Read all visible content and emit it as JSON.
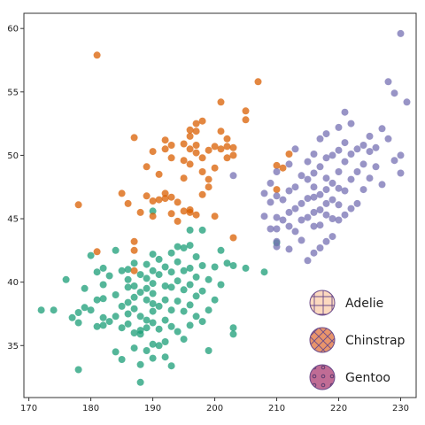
{
  "chart_data": {
    "type": "scatter",
    "title": "",
    "xlabel": "",
    "ylabel": "",
    "xlim": [
      169.2,
      232.5
    ],
    "ylim": [
      30.9,
      61.2
    ],
    "x_ticks": [
      170,
      180,
      190,
      200,
      210,
      220,
      230
    ],
    "y_ticks": [
      35,
      40,
      45,
      50,
      55,
      60
    ],
    "grid": false,
    "legend_position": "lower-right",
    "series": [
      {
        "name": "Adelie",
        "color": "#1b9e77",
        "legend_marker": "crosshatch",
        "legend_color": "#fcd9bf",
        "points": [
          [
            172,
            37.8
          ],
          [
            174,
            37.8
          ],
          [
            176,
            40.2
          ],
          [
            177,
            37.2
          ],
          [
            178,
            37.6
          ],
          [
            178,
            33.1
          ],
          [
            179,
            38.0
          ],
          [
            179,
            39.5
          ],
          [
            180,
            37.8
          ],
          [
            180,
            42.1
          ],
          [
            181,
            36.5
          ],
          [
            181,
            38.6
          ],
          [
            181,
            40.8
          ],
          [
            182,
            36.6
          ],
          [
            182,
            38.7
          ],
          [
            182,
            39.8
          ],
          [
            182,
            41.1
          ],
          [
            183,
            36.9
          ],
          [
            183,
            40.5
          ],
          [
            184,
            37.3
          ],
          [
            184,
            34.5
          ],
          [
            184,
            39.0
          ],
          [
            185,
            36.4
          ],
          [
            185,
            38.1
          ],
          [
            185,
            40.9
          ],
          [
            185,
            33.9
          ],
          [
            186,
            36.7
          ],
          [
            186,
            37.5
          ],
          [
            186,
            39.6
          ],
          [
            186,
            40.2
          ],
          [
            186,
            41.0
          ],
          [
            187,
            34.8
          ],
          [
            187,
            36.0
          ],
          [
            187,
            37.9
          ],
          [
            187,
            38.8
          ],
          [
            187,
            39.7
          ],
          [
            187,
            41.5
          ],
          [
            188,
            33.5
          ],
          [
            188,
            35.9
          ],
          [
            188,
            36.2
          ],
          [
            188,
            37.3
          ],
          [
            188,
            39.2
          ],
          [
            188,
            40.6
          ],
          [
            188,
            32.1
          ],
          [
            189,
            34.6
          ],
          [
            189,
            36.4
          ],
          [
            189,
            37.0
          ],
          [
            189,
            38.6
          ],
          [
            189,
            39.5
          ],
          [
            189,
            40.3
          ],
          [
            189,
            41.4
          ],
          [
            190,
            35.1
          ],
          [
            190,
            36.8
          ],
          [
            190,
            37.7
          ],
          [
            190,
            38.3
          ],
          [
            190,
            39.1
          ],
          [
            190,
            39.9
          ],
          [
            190,
            40.9
          ],
          [
            190,
            42.2
          ],
          [
            191,
            35.0
          ],
          [
            191,
            36.3
          ],
          [
            191,
            38.1
          ],
          [
            191,
            40.6
          ],
          [
            191,
            41.8
          ],
          [
            192,
            35.3
          ],
          [
            192,
            37.0
          ],
          [
            192,
            38.6
          ],
          [
            192,
            39.7
          ],
          [
            192,
            41.2
          ],
          [
            192,
            34.1
          ],
          [
            193,
            36.5
          ],
          [
            193,
            37.8
          ],
          [
            193,
            39.6
          ],
          [
            193,
            40.8
          ],
          [
            193,
            42.3
          ],
          [
            193,
            33.4
          ],
          [
            194,
            36.1
          ],
          [
            194,
            38.5
          ],
          [
            194,
            40.1
          ],
          [
            194,
            41.6
          ],
          [
            195,
            35.5
          ],
          [
            195,
            37.7
          ],
          [
            195,
            39.4
          ],
          [
            195,
            40.9
          ],
          [
            195,
            42.7
          ],
          [
            196,
            36.6
          ],
          [
            196,
            38.2
          ],
          [
            196,
            39.8
          ],
          [
            196,
            41.1
          ],
          [
            196,
            42.9
          ],
          [
            197,
            37.3
          ],
          [
            197,
            38.9
          ],
          [
            197,
            40.4
          ],
          [
            197,
            42.0
          ],
          [
            198,
            36.9
          ],
          [
            198,
            39.3
          ],
          [
            198,
            41.3
          ],
          [
            198,
            44.1
          ],
          [
            199,
            37.8
          ],
          [
            199,
            40.2
          ],
          [
            200,
            38.6
          ],
          [
            200,
            41.2
          ],
          [
            201,
            39.8
          ],
          [
            201,
            42.5
          ],
          [
            202,
            41.5
          ],
          [
            203,
            41.3
          ],
          [
            203,
            35.9
          ],
          [
            203,
            36.4
          ],
          [
            205,
            41.1
          ],
          [
            208,
            40.8
          ],
          [
            210,
            43.1
          ],
          [
            182,
            37.2
          ],
          [
            184,
            42.5
          ],
          [
            186,
            38.4
          ],
          [
            190,
            34.0
          ],
          [
            194,
            42.8
          ],
          [
            196,
            44.1
          ],
          [
            199,
            34.6
          ],
          [
            178,
            36.8
          ],
          [
            190,
            45.6
          ]
        ]
      },
      {
        "name": "Chinstrap",
        "color": "#d95f02",
        "legend_marker": "crosshatch",
        "legend_color": "#e8946b",
        "points": [
          [
            178,
            46.1
          ],
          [
            181,
            42.4
          ],
          [
            181,
            57.9
          ],
          [
            185,
            47.0
          ],
          [
            186,
            46.2
          ],
          [
            187,
            40.9
          ],
          [
            187,
            42.5
          ],
          [
            187,
            43.2
          ],
          [
            187,
            51.4
          ],
          [
            188,
            45.5
          ],
          [
            189,
            46.8
          ],
          [
            189,
            49.1
          ],
          [
            190,
            45.2
          ],
          [
            190,
            46.4
          ],
          [
            190,
            50.3
          ],
          [
            191,
            46.5
          ],
          [
            191,
            48.5
          ],
          [
            192,
            46.6
          ],
          [
            192,
            47.0
          ],
          [
            192,
            50.5
          ],
          [
            192,
            51.2
          ],
          [
            193,
            45.4
          ],
          [
            193,
            46.7
          ],
          [
            193,
            49.8
          ],
          [
            194,
            46.3
          ],
          [
            195,
            45.6
          ],
          [
            195,
            48.2
          ],
          [
            195,
            49.6
          ],
          [
            195,
            50.9
          ],
          [
            196,
            45.7
          ],
          [
            196,
            49.3
          ],
          [
            196,
            50.5
          ],
          [
            196,
            51.5
          ],
          [
            196,
            52.0
          ],
          [
            197,
            50.2
          ],
          [
            197,
            50.8
          ],
          [
            197,
            51.9
          ],
          [
            197,
            52.5
          ],
          [
            197,
            45.3
          ],
          [
            198,
            48.7
          ],
          [
            198,
            49.8
          ],
          [
            198,
            52.7
          ],
          [
            198,
            46.9
          ],
          [
            199,
            47.5
          ],
          [
            199,
            48.1
          ],
          [
            199,
            50.4
          ],
          [
            200,
            45.2
          ],
          [
            200,
            49.0
          ],
          [
            200,
            50.7
          ],
          [
            201,
            50.5
          ],
          [
            201,
            51.9
          ],
          [
            201,
            54.2
          ],
          [
            202,
            49.8
          ],
          [
            202,
            50.7
          ],
          [
            202,
            51.3
          ],
          [
            203,
            43.5
          ],
          [
            203,
            50.6
          ],
          [
            203,
            50.0
          ],
          [
            205,
            52.8
          ],
          [
            205,
            53.5
          ],
          [
            207,
            55.8
          ],
          [
            210,
            49.2
          ],
          [
            210,
            47.3
          ],
          [
            211,
            49.0
          ],
          [
            212,
            50.1
          ],
          [
            196,
            45.5
          ],
          [
            193,
            50.8
          ],
          [
            194,
            44.8
          ]
        ]
      },
      {
        "name": "Gentoo",
        "color": "#7570b3",
        "legend_marker": "dots",
        "legend_color": "#c06c95",
        "points": [
          [
            203,
            48.4
          ],
          [
            208,
            45.2
          ],
          [
            208,
            47.0
          ],
          [
            209,
            44.2
          ],
          [
            209,
            46.3
          ],
          [
            209,
            47.8
          ],
          [
            210,
            45.1
          ],
          [
            210,
            46.8
          ],
          [
            210,
            48.7
          ],
          [
            210,
            43.2
          ],
          [
            210,
            42.8
          ],
          [
            211,
            44.9
          ],
          [
            211,
            46.5
          ],
          [
            212,
            45.5
          ],
          [
            212,
            47.2
          ],
          [
            212,
            49.3
          ],
          [
            212,
            42.6
          ],
          [
            213,
            44.0
          ],
          [
            213,
            45.8
          ],
          [
            213,
            47.5
          ],
          [
            213,
            50.5
          ],
          [
            214,
            43.3
          ],
          [
            214,
            46.2
          ],
          [
            214,
            48.4
          ],
          [
            214,
            44.9
          ],
          [
            215,
            45.1
          ],
          [
            215,
            46.6
          ],
          [
            215,
            48.1
          ],
          [
            215,
            49.5
          ],
          [
            215,
            41.7
          ],
          [
            216,
            44.4
          ],
          [
            216,
            45.5
          ],
          [
            216,
            46.7
          ],
          [
            216,
            47.5
          ],
          [
            216,
            48.6
          ],
          [
            216,
            50.1
          ],
          [
            217,
            42.7
          ],
          [
            217,
            45.7
          ],
          [
            217,
            46.9
          ],
          [
            217,
            49.1
          ],
          [
            217,
            51.3
          ],
          [
            217,
            44.5
          ],
          [
            218,
            45.3
          ],
          [
            218,
            46.2
          ],
          [
            218,
            47.3
          ],
          [
            218,
            48.2
          ],
          [
            218,
            49.8
          ],
          [
            218,
            51.7
          ],
          [
            219,
            45.0
          ],
          [
            219,
            46.5
          ],
          [
            219,
            47.8
          ],
          [
            219,
            50.0
          ],
          [
            219,
            43.6
          ],
          [
            220,
            44.9
          ],
          [
            220,
            46.1
          ],
          [
            220,
            47.4
          ],
          [
            220,
            48.7
          ],
          [
            220,
            50.4
          ],
          [
            220,
            52.2
          ],
          [
            221,
            45.3
          ],
          [
            221,
            47.2
          ],
          [
            221,
            49.5
          ],
          [
            221,
            51.0
          ],
          [
            221,
            53.4
          ],
          [
            222,
            45.8
          ],
          [
            222,
            48.1
          ],
          [
            222,
            50.1
          ],
          [
            222,
            52.5
          ],
          [
            223,
            46.2
          ],
          [
            223,
            48.7
          ],
          [
            223,
            50.5
          ],
          [
            224,
            47.3
          ],
          [
            224,
            49.3
          ],
          [
            224,
            50.8
          ],
          [
            225,
            48.2
          ],
          [
            225,
            50.3
          ],
          [
            225,
            51.5
          ],
          [
            226,
            49.1
          ],
          [
            226,
            50.6
          ],
          [
            227,
            47.7
          ],
          [
            227,
            52.1
          ],
          [
            228,
            51.3
          ],
          [
            228,
            55.8
          ],
          [
            229,
            49.6
          ],
          [
            229,
            54.9
          ],
          [
            230,
            48.6
          ],
          [
            230,
            50.0
          ],
          [
            230,
            59.6
          ],
          [
            231,
            54.2
          ],
          [
            216,
            42.3
          ],
          [
            218,
            43.2
          ],
          [
            210,
            44.2
          ],
          [
            212,
            44.4
          ]
        ]
      }
    ]
  }
}
